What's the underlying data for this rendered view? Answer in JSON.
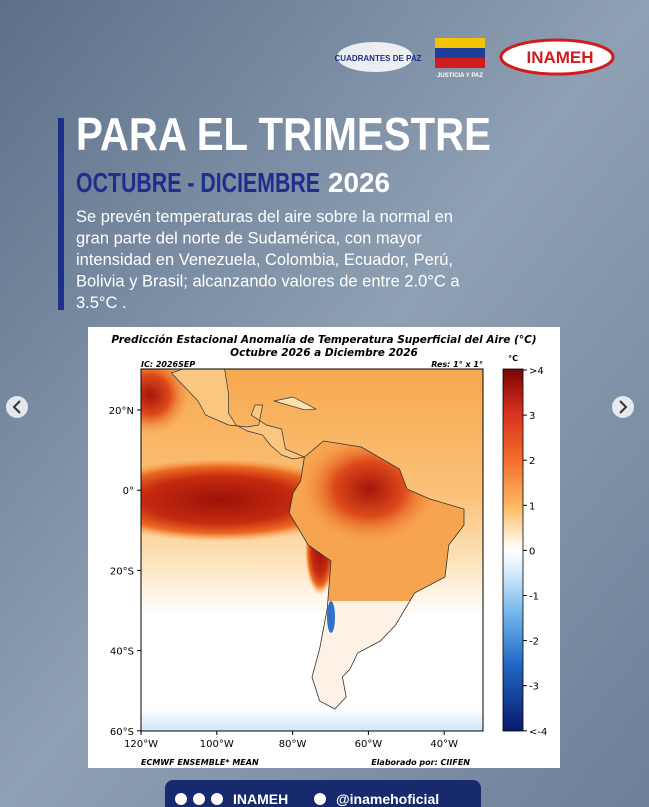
{
  "header": {
    "logos": [
      "CUADRANTES DE PAZ",
      "JUSTICIA Y PAZ",
      "INAMEH"
    ]
  },
  "headline": {
    "title": "PARA EL TRIMESTRE",
    "period": "OCTUBRE - DICIEMBRE",
    "year": "2026"
  },
  "body": [
    "Se prevén temperaturas del aire sobre la normal en",
    "gran parte del norte de Sudamérica, con mayor",
    "intensidad en Venezuela, Colombia, Ecuador, Perú,",
    "Bolivia y Brasil; alcanzando valores de entre 2.0°C a",
    "3.5°C ."
  ],
  "map": {
    "title": [
      "Predicción Estacional Anomalía de Temperatura Superficial del Aire (°C)",
      "Octubre 2026 a Diciembre 2026"
    ],
    "ic": "IC: 2026SEP",
    "res": "Res: 1° x 1°",
    "unit": "°C",
    "lat_labels": [
      "20°N",
      "0°",
      "20°S",
      "40°S",
      "60°S"
    ],
    "lon_labels": [
      "120°W",
      "100°W",
      "80°W",
      "60°W",
      "40°W"
    ],
    "colorbar_labels": [
      ">4",
      "3",
      "2",
      "1",
      "0",
      "-1",
      "-2",
      "-3",
      "<-4"
    ],
    "footer_left": "ECMWF ENSEMBLE* MEAN",
    "footer_right": "Elaborado por: CIIFEN"
  },
  "social": {
    "name": "INAMEH",
    "handle": "@inamehoficial"
  }
}
